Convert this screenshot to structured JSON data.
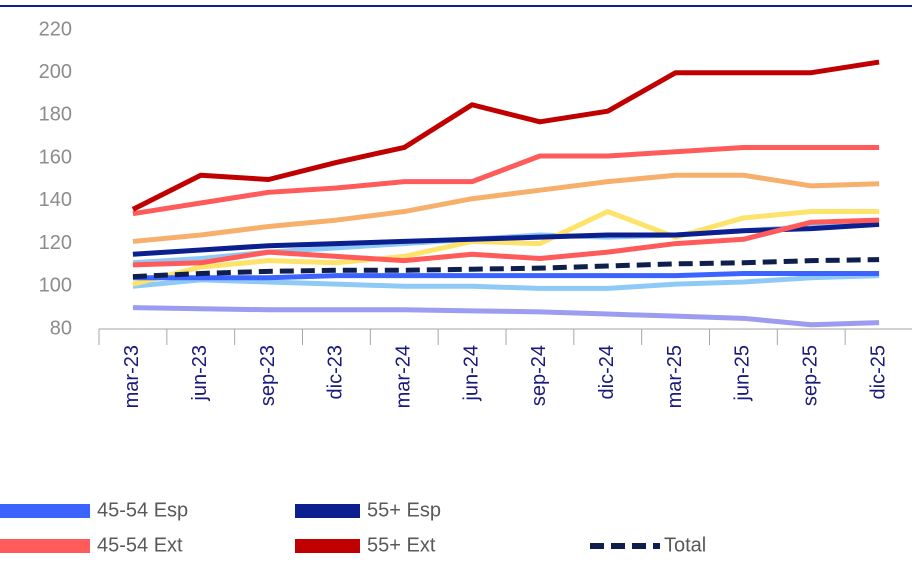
{
  "chart_data": {
    "type": "line",
    "categories": [
      "mar-23",
      "jun-23",
      "sep-23",
      "dic-23",
      "mar-24",
      "jun-24",
      "sep-24",
      "dic-24",
      "mar-25",
      "jun-25",
      "sep-25",
      "dic-25"
    ],
    "ylim": [
      80,
      220
    ],
    "yticks": [
      80,
      100,
      120,
      140,
      160,
      180,
      200,
      220
    ],
    "series": [
      {
        "color": "#8fcaf7",
        "values": [
          111,
          113,
          116,
          118,
          120,
          122,
          124,
          123,
          124,
          126,
          128,
          130
        ]
      },
      {
        "color": "#8fcaf7",
        "values": [
          100,
          103,
          102,
          101,
          100,
          100,
          99,
          99,
          101,
          102,
          104,
          105
        ]
      },
      {
        "color": "#9c9cf0",
        "values": [
          90,
          89.5,
          89,
          89,
          89,
          88.5,
          88,
          87,
          86,
          85,
          82,
          83
        ]
      },
      {
        "color": "#f6b06c",
        "values": [
          121,
          124,
          128,
          131,
          135,
          141,
          145,
          149,
          152,
          152,
          147,
          148
        ]
      },
      {
        "color": "#fde36a",
        "values": [
          101,
          109,
          112,
          111,
          114,
          121,
          120,
          135,
          123,
          132,
          135,
          135
        ]
      },
      {
        "color": "#ff5b5b",
        "values": [
          134,
          139,
          144,
          146,
          149,
          149,
          161,
          161,
          163,
          165,
          165,
          165
        ]
      },
      {
        "name": "45-54 Esp",
        "color": "#3a63ff",
        "values": [
          104,
          104,
          104,
          105,
          105,
          105,
          105,
          105,
          105,
          106,
          106,
          106
        ]
      },
      {
        "name": "55+ Esp",
        "color": "#0c1f8f",
        "values": [
          115,
          117,
          119,
          120,
          121,
          122,
          123,
          124,
          124,
          126,
          127,
          129
        ]
      },
      {
        "name": "45-54 Ext",
        "color": "#ff5b5b",
        "values": [
          110,
          111,
          116,
          114,
          112,
          115,
          113,
          116,
          120,
          122,
          130,
          131
        ]
      },
      {
        "name": "55+ Ext",
        "color": "#c00000",
        "values": [
          136,
          152,
          150,
          158,
          165,
          185,
          177,
          182,
          200,
          200,
          200,
          205
        ]
      },
      {
        "name": "Total",
        "color": "#0f1f4d",
        "dashed": true,
        "values": [
          104.5,
          106,
          107,
          107.5,
          107.5,
          108,
          108.5,
          109.5,
          110.5,
          111,
          112,
          112.5
        ]
      }
    ]
  }
}
